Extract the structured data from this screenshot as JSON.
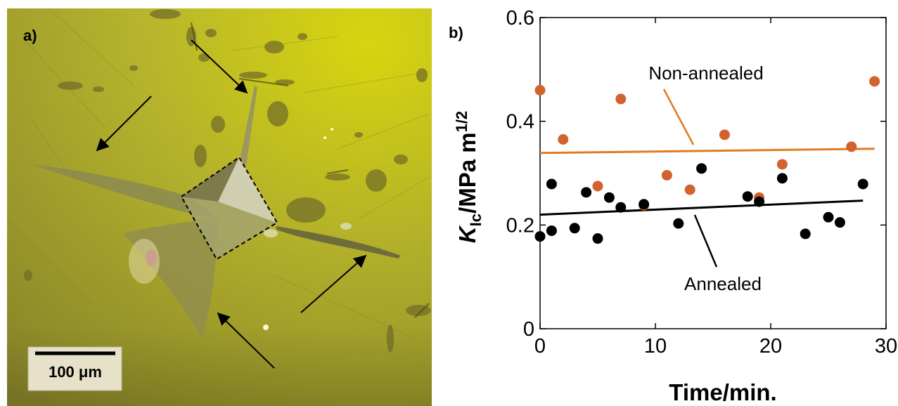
{
  "panel_a": {
    "label": "a)",
    "scale_bar_label": "100 μm",
    "colors": {
      "background": "#b9b52a",
      "indent": "#8f8d4c",
      "arrows": "#000000"
    }
  },
  "panel_b": {
    "label": "b)"
  },
  "chart_data": {
    "type": "scatter",
    "title": "",
    "xlabel": "Time/min.",
    "ylabel": "KIc/MPa m1/2",
    "ylabel_parts": {
      "k": "K",
      "sub": "Ic",
      "rest": "/MPa m",
      "sup": "1/2"
    },
    "xlim": [
      0,
      30
    ],
    "ylim": [
      0,
      0.6
    ],
    "xticks": [
      0,
      10,
      20,
      30
    ],
    "yticks": [
      0,
      0.2,
      0.4,
      0.6
    ],
    "xtick_labels": [
      "0",
      "10",
      "20",
      "30"
    ],
    "ytick_labels": [
      "0",
      "0.2",
      "0.4",
      "0.6"
    ],
    "grid": false,
    "series": [
      {
        "name": "Non-annealed",
        "color": "#d2622e",
        "x": [
          0,
          2,
          5,
          7,
          9,
          11,
          13,
          16,
          19,
          21,
          27,
          29
        ],
        "y": [
          0.46,
          0.365,
          0.275,
          0.443,
          0.238,
          0.296,
          0.268,
          0.374,
          0.253,
          0.317,
          0.351,
          0.477
        ],
        "fit": {
          "x": [
            0,
            29
          ],
          "y": [
            0.339,
            0.347
          ],
          "color": "#e07b1e"
        }
      },
      {
        "name": "Annealed",
        "color": "#000000",
        "x": [
          0,
          1,
          1,
          3,
          4,
          5,
          6,
          7,
          9,
          12,
          14,
          18,
          19,
          21,
          23,
          25,
          26,
          28
        ],
        "y": [
          0.178,
          0.189,
          0.279,
          0.194,
          0.263,
          0.174,
          0.253,
          0.234,
          0.24,
          0.203,
          0.309,
          0.255,
          0.245,
          0.29,
          0.183,
          0.215,
          0.205,
          0.279
        ],
        "fit": {
          "x": [
            0,
            28
          ],
          "y": [
            0.22,
            0.247
          ],
          "color": "#000000"
        }
      }
    ],
    "annotations": [
      {
        "text": "Non-annealed",
        "series": "Non-annealed"
      },
      {
        "text": "Annealed",
        "series": "Annealed"
      }
    ]
  }
}
